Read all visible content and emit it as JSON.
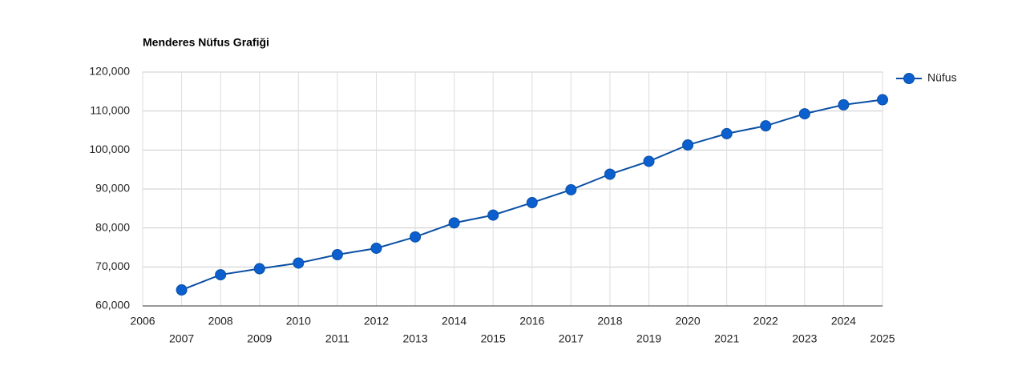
{
  "chart_data": {
    "type": "line",
    "title": "Menderes Nüfus Grafiği",
    "x": [
      2007,
      2008,
      2009,
      2010,
      2011,
      2012,
      2013,
      2014,
      2015,
      2016,
      2017,
      2018,
      2019,
      2020,
      2021,
      2022,
      2023,
      2024,
      2025
    ],
    "series": [
      {
        "name": "Nüfus",
        "color": "#0b5fcf",
        "values": [
          64100,
          68000,
          69550,
          71000,
          73150,
          74800,
          77700,
          81300,
          83300,
          86500,
          89800,
          93800,
          97100,
          101300,
          104200,
          106200,
          109300,
          111600,
          112900
        ]
      }
    ],
    "xlim": [
      2006,
      2025
    ],
    "xticks": [
      2006,
      2007,
      2008,
      2009,
      2010,
      2011,
      2012,
      2013,
      2014,
      2015,
      2016,
      2017,
      2018,
      2019,
      2020,
      2021,
      2022,
      2023,
      2024,
      2025
    ],
    "ylim": [
      60000,
      120000
    ],
    "yticks": [
      {
        "value": 60000,
        "label": "60,000"
      },
      {
        "value": 70000,
        "label": "70,000"
      },
      {
        "value": 80000,
        "label": "80,000"
      },
      {
        "value": 90000,
        "label": "90,000"
      },
      {
        "value": 100000,
        "label": "100,000"
      },
      {
        "value": 110000,
        "label": "110,000"
      },
      {
        "value": 120000,
        "label": "120,000"
      }
    ],
    "grid": true,
    "legend": "right"
  }
}
